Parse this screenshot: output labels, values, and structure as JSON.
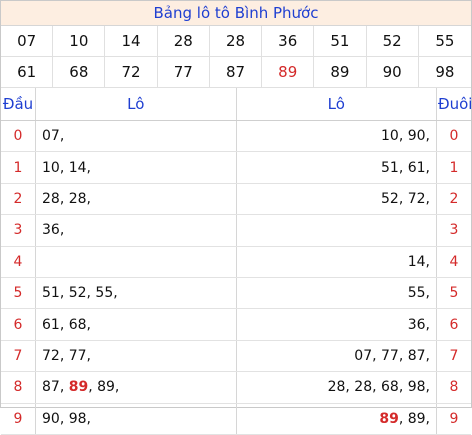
{
  "title": "Bảng lô tô Bình Phước",
  "numbers_row1": [
    "07",
    "10",
    "14",
    "28",
    "28",
    "36",
    "51",
    "52",
    "55"
  ],
  "numbers_row2": [
    "61",
    "68",
    "72",
    "77",
    "87",
    "89",
    "89",
    "90",
    "98"
  ],
  "highlight_index_row2": 5,
  "headers": {
    "dau": "Đầu",
    "lo1": "Lô",
    "lo2": "Lô",
    "duoi": "Đuôi"
  },
  "rows": [
    {
      "dau": "0",
      "lo1": [
        [
          "07,",
          false
        ]
      ],
      "lo2": [
        [
          "10, 90,",
          false
        ]
      ],
      "duoi": "0"
    },
    {
      "dau": "1",
      "lo1": [
        [
          "10, 14,",
          false
        ]
      ],
      "lo2": [
        [
          "51, 61,",
          false
        ]
      ],
      "duoi": "1"
    },
    {
      "dau": "2",
      "lo1": [
        [
          "28, 28,",
          false
        ]
      ],
      "lo2": [
        [
          "52, 72,",
          false
        ]
      ],
      "duoi": "2"
    },
    {
      "dau": "3",
      "lo1": [
        [
          "36,",
          false
        ]
      ],
      "lo2": [],
      "duoi": "3"
    },
    {
      "dau": "4",
      "lo1": [],
      "lo2": [
        [
          "14,",
          false
        ]
      ],
      "duoi": "4"
    },
    {
      "dau": "5",
      "lo1": [
        [
          "51, 52, 55,",
          false
        ]
      ],
      "lo2": [
        [
          "55,",
          false
        ]
      ],
      "duoi": "5"
    },
    {
      "dau": "6",
      "lo1": [
        [
          "61, 68,",
          false
        ]
      ],
      "lo2": [
        [
          "36,",
          false
        ]
      ],
      "duoi": "6"
    },
    {
      "dau": "7",
      "lo1": [
        [
          "72, 77,",
          false
        ]
      ],
      "lo2": [
        [
          "07, 77, 87,",
          false
        ]
      ],
      "duoi": "7"
    },
    {
      "dau": "8",
      "lo1": [
        [
          "87, ",
          false
        ],
        [
          "89",
          true
        ],
        [
          ", 89,",
          false
        ]
      ],
      "lo2": [
        [
          "28, 28, 68, 98,",
          false
        ]
      ],
      "duoi": "8"
    },
    {
      "dau": "9",
      "lo1": [
        [
          "90, 98,",
          false
        ]
      ],
      "lo2": [
        [
          "89",
          true
        ],
        [
          ", 89,",
          false
        ]
      ],
      "duoi": "9"
    }
  ]
}
